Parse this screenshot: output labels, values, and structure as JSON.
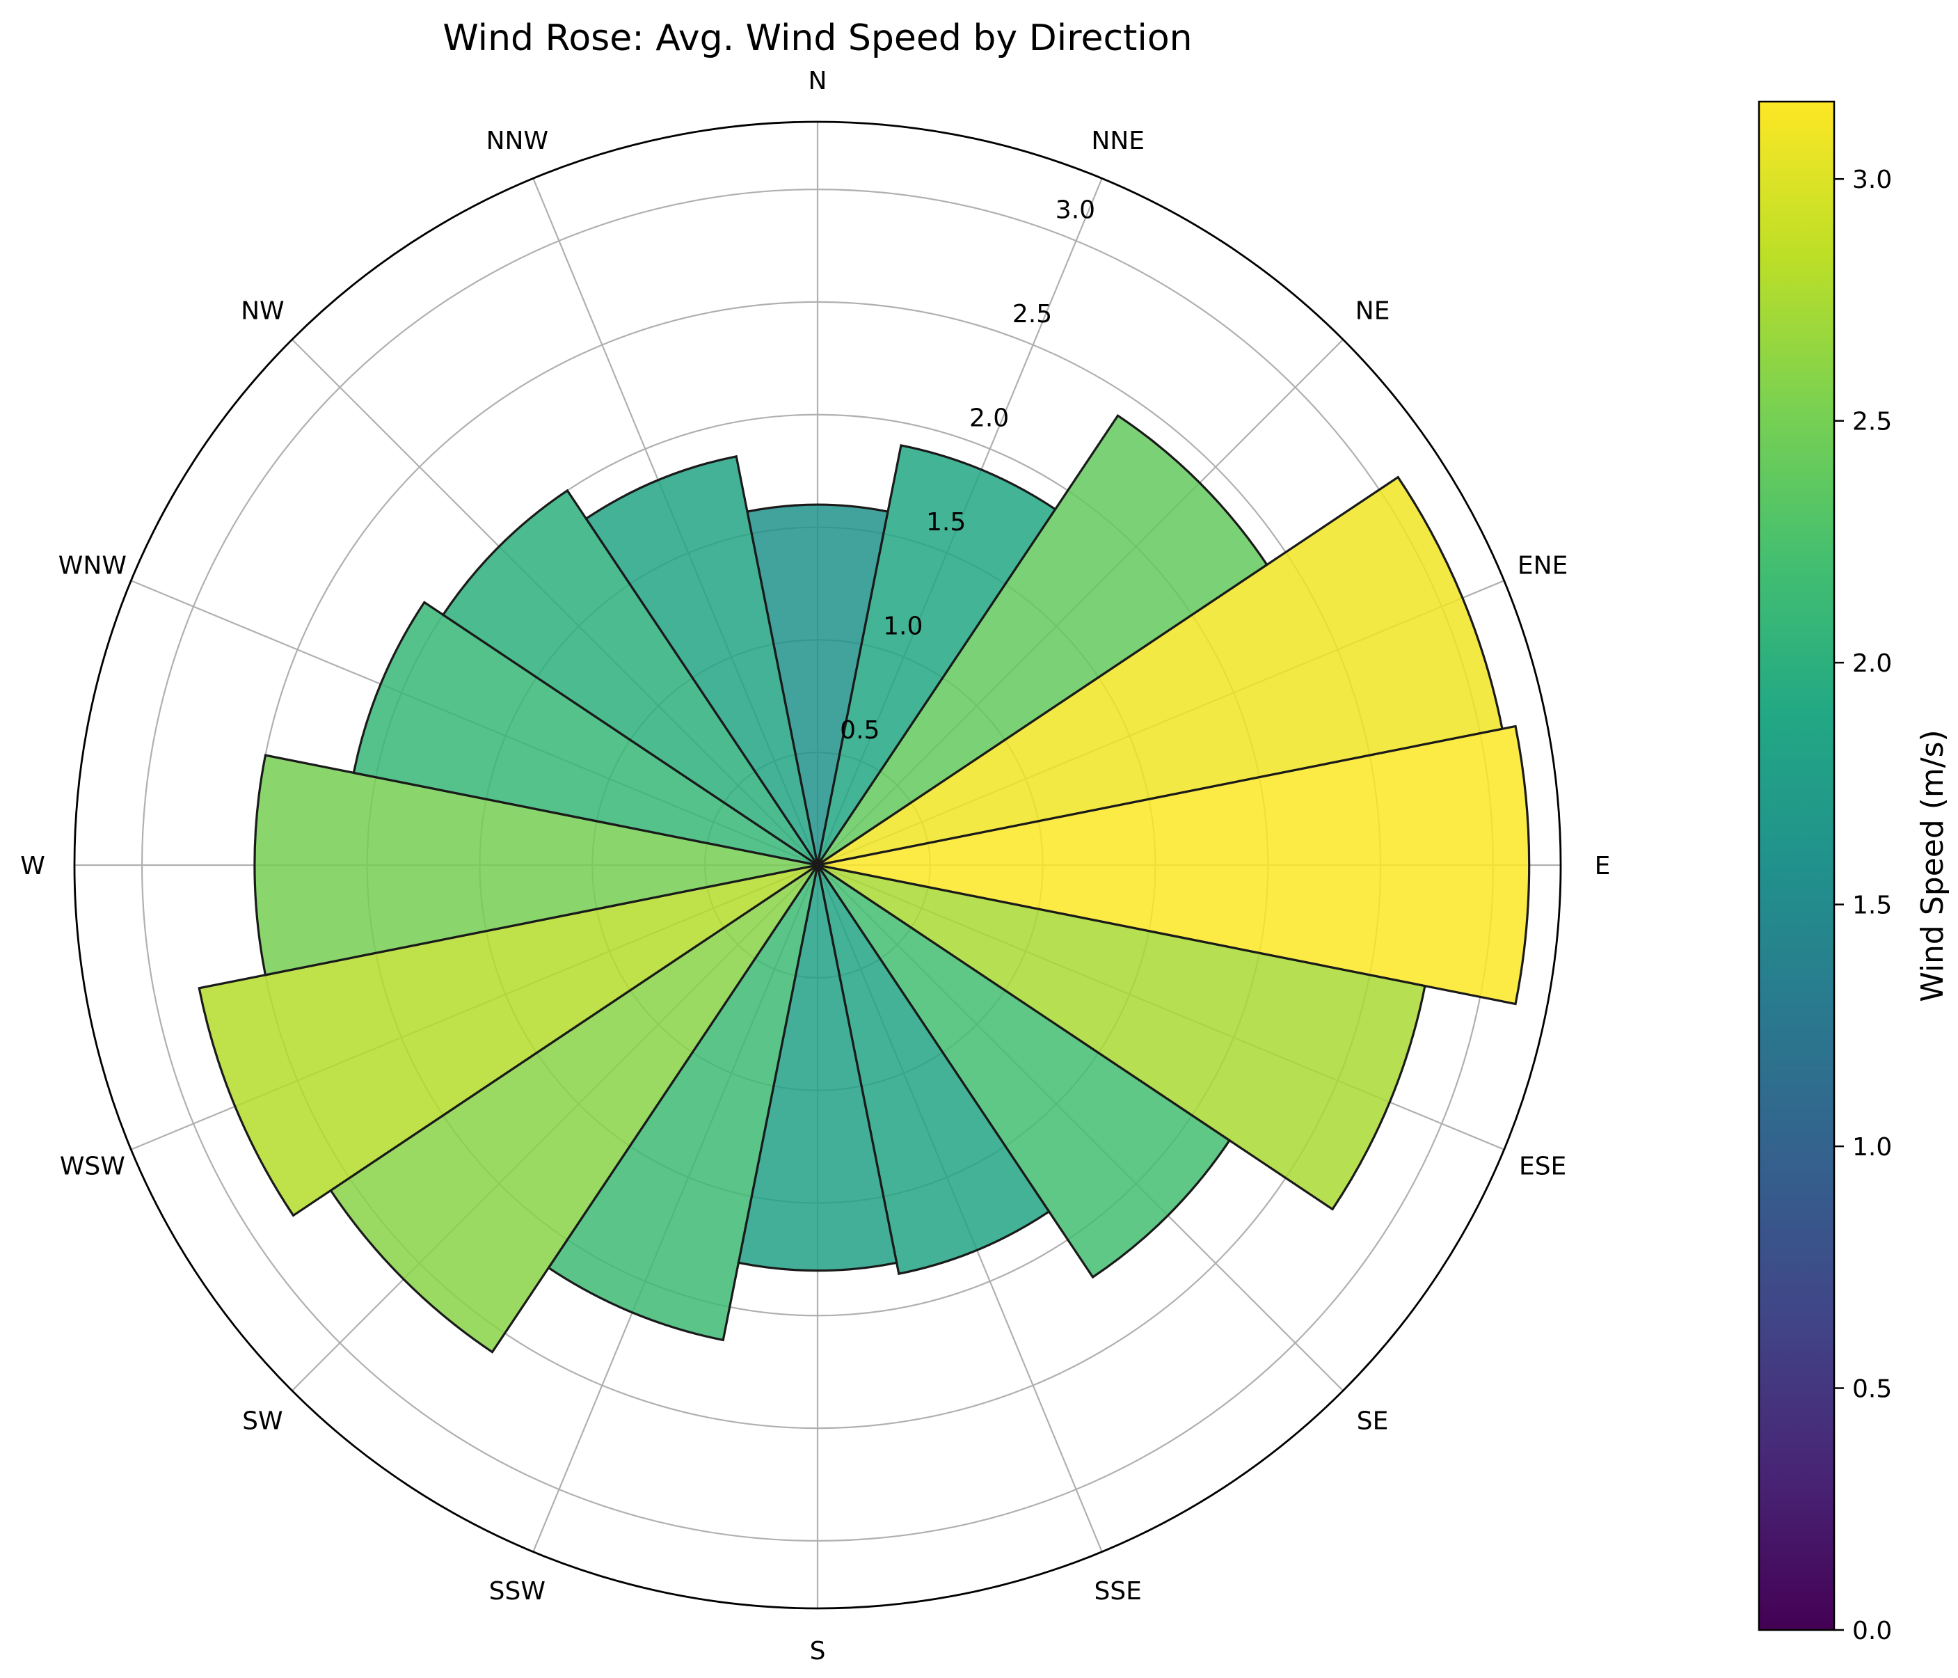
{
  "chart_data": {
    "type": "polar-bar",
    "title": "Wind Rose: Avg. Wind Speed by Direction",
    "directions": [
      "N",
      "NNE",
      "NE",
      "ENE",
      "E",
      "ESE",
      "SE",
      "SSE",
      "S",
      "SSW",
      "SW",
      "WSW",
      "W",
      "WNW",
      "NW",
      "NNW"
    ],
    "values": [
      1.6,
      1.9,
      2.4,
      3.1,
      3.16,
      2.75,
      2.2,
      1.85,
      1.8,
      2.15,
      2.6,
      2.8,
      2.5,
      2.1,
      2.0,
      1.85
    ],
    "r_range": [
      0,
      3.3
    ],
    "r_ticks": [
      0.5,
      1.0,
      1.5,
      2.0,
      2.5,
      3.0
    ],
    "r_tick_labels": [
      "0.5",
      "1.0",
      "1.5",
      "2.0",
      "2.5",
      "3.0"
    ],
    "grid": true,
    "colormap": "viridis",
    "colorbar": {
      "label": "Wind Speed (m/s)",
      "range": [
        0,
        3.16
      ],
      "ticks": [
        0.0,
        0.5,
        1.0,
        1.5,
        2.0,
        2.5,
        3.0
      ],
      "tick_labels": [
        "0.0",
        "0.5",
        "1.0",
        "1.5",
        "2.0",
        "2.5",
        "3.0"
      ]
    },
    "colors": {
      "grid": "#b0b0b0",
      "edge": "#1a1a1a",
      "frame": "#000000"
    }
  }
}
